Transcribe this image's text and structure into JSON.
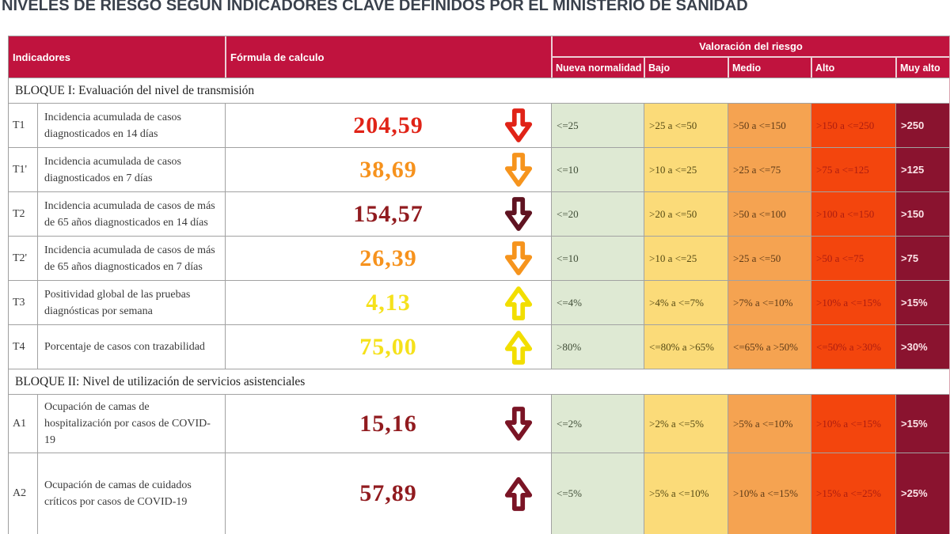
{
  "title": "NIVELES DE RIESGO SEGÚN INDICADORES CLAVE DEFINIDOS POR EL MINISTERIO DE SANIDAD",
  "table": {
    "header_bg": "#c0133e",
    "header_text": "#ffffff",
    "headers": {
      "indicadores": "Indicadores",
      "formula": "Fórmula de calculo",
      "valoracion": "Valoración del riesgo",
      "levels": [
        "Nueva normalidad",
        "Bajo",
        "Medio",
        "Alto",
        "Muy alto"
      ]
    },
    "level_colors": {
      "bg": [
        "#dee9d3",
        "#fbdb79",
        "#f5a351",
        "#f3450d",
        "#8a132f"
      ],
      "text": [
        "#3f4c36",
        "#564a14",
        "#5d3a17",
        "#ad1d10",
        "#fce4e8"
      ]
    },
    "sections": [
      {
        "label": "BLOQUE I: Evaluación del nivel de transmisión",
        "rows": [
          {
            "code": "T1",
            "desc": "Incidencia acumulada de casos diagnosticados en 14 días",
            "value": "204,59",
            "value_color": "#e02317",
            "arrow": "down",
            "arrow_color": "#e02317",
            "levels": [
              "<=25",
              ">25 a <=50",
              ">50 a <=150",
              ">150 a <=250",
              ">250"
            ]
          },
          {
            "code": "T1'",
            "desc": "Incidencia acumulada de casos diagnosticados en 7 días",
            "value": "38,69",
            "value_color": "#f6921d",
            "arrow": "down",
            "arrow_color": "#f6941d",
            "levels": [
              "<=10",
              ">10 a <=25",
              ">25 a <=75",
              ">75 a <=125",
              ">125"
            ]
          },
          {
            "code": "T2",
            "desc": "Incidencia acumulada de casos de más de 65 años diagnosticados en 14 días",
            "value": "154,57",
            "value_color": "#911b1f",
            "arrow": "down",
            "arrow_color": "#5f1321",
            "levels": [
              "<=20",
              ">20 a <=50",
              ">50 a <=100",
              ">100 a <=150",
              ">150"
            ]
          },
          {
            "code": "T2'",
            "desc": "Incidencia acumulada de casos de más de 65 años diagnosticados en 7 días",
            "value": "26,39",
            "value_color": "#f6921d",
            "arrow": "down",
            "arrow_color": "#f6941d",
            "levels": [
              "<=10",
              ">10 a <=25",
              ">25 a <=50",
              ">50 a <=75",
              ">75"
            ]
          },
          {
            "code": "T3",
            "desc": "Positividad global de las pruebas diagnósticas por semana",
            "value": "4,13",
            "value_color": "#f5e11b",
            "arrow": "up",
            "arrow_color": "#f2de00",
            "levels": [
              "<=4%",
              ">4% a <=7%",
              ">7% a <=10%",
              ">10% a <=15%",
              ">15%"
            ]
          },
          {
            "code": "T4",
            "desc": "Porcentaje de casos con trazabilidad",
            "value": "75,00",
            "value_color": "#f5e11b",
            "arrow": "up",
            "arrow_color": "#f2de00",
            "levels": [
              ">80%",
              "<=80% a >65%",
              "<=65% a >50%",
              "<=50% a >30%",
              ">30%"
            ]
          }
        ]
      },
      {
        "label": "BLOQUE II: Nivel de utilización de servicios asistenciales",
        "rows": [
          {
            "code": "A1",
            "desc": "Ocupación de camas de hospitalización por casos de COVID-19",
            "value": "15,16",
            "value_color": "#911b1f",
            "arrow": "down",
            "arrow_color": "#7a1425",
            "levels": [
              "<=2%",
              ">2% a <=5%",
              ">5% a <=10%",
              ">10% a <=15%",
              ">15%"
            ]
          },
          {
            "code": "A2",
            "desc": "Ocupación de camas de cuidados críticos por casos de COVID-19",
            "value": "57,89",
            "value_color": "#911b1f",
            "arrow": "up",
            "arrow_color": "#7a1425",
            "levels": [
              "<=5%",
              ">5% a <=10%",
              ">10% a <=15%",
              ">15% a <=25%",
              ">25%"
            ]
          }
        ]
      }
    ]
  }
}
